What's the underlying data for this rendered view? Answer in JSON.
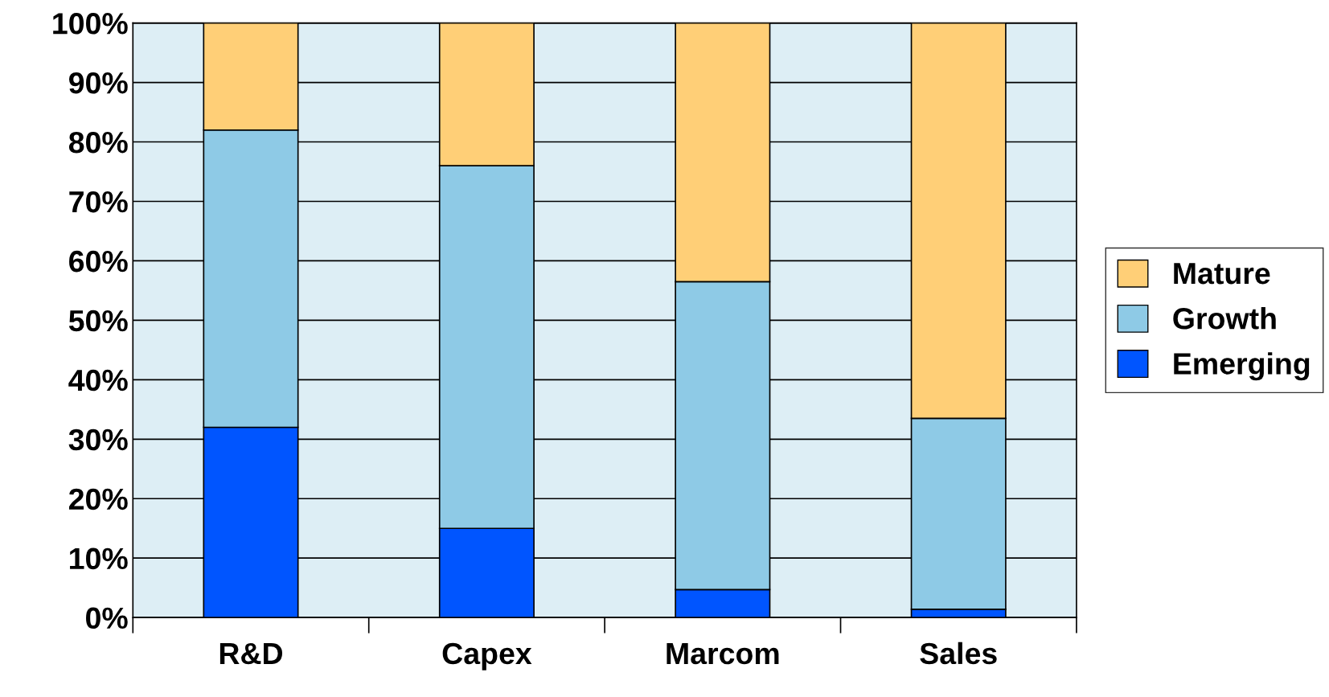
{
  "chart_data": {
    "type": "bar",
    "stacked": true,
    "categories": [
      "R&D",
      "Capex",
      "Marcom",
      "Sales"
    ],
    "series": [
      {
        "name": "Emerging",
        "color": "#0055ff",
        "values": [
          32,
          15,
          4.7,
          1.4
        ]
      },
      {
        "name": "Growth",
        "color": "#8ecae6",
        "values": [
          50,
          61,
          51.8,
          32.1
        ]
      },
      {
        "name": "Mature",
        "color": "#ffcf77",
        "values": [
          18,
          24,
          43.5,
          66.5
        ]
      }
    ],
    "ylim": [
      0,
      100
    ],
    "yticks": [
      {
        "value": 0,
        "label": "0%"
      },
      {
        "value": 10,
        "label": "10%"
      },
      {
        "value": 20,
        "label": "20%"
      },
      {
        "value": 30,
        "label": "30%"
      },
      {
        "value": 40,
        "label": "40%"
      },
      {
        "value": 50,
        "label": "50%"
      },
      {
        "value": 60,
        "label": "60%"
      },
      {
        "value": 70,
        "label": "70%"
      },
      {
        "value": 80,
        "label": "80%"
      },
      {
        "value": 90,
        "label": "90%"
      },
      {
        "value": 100,
        "label": "100%"
      }
    ],
    "grid": "y",
    "legend": "right"
  }
}
